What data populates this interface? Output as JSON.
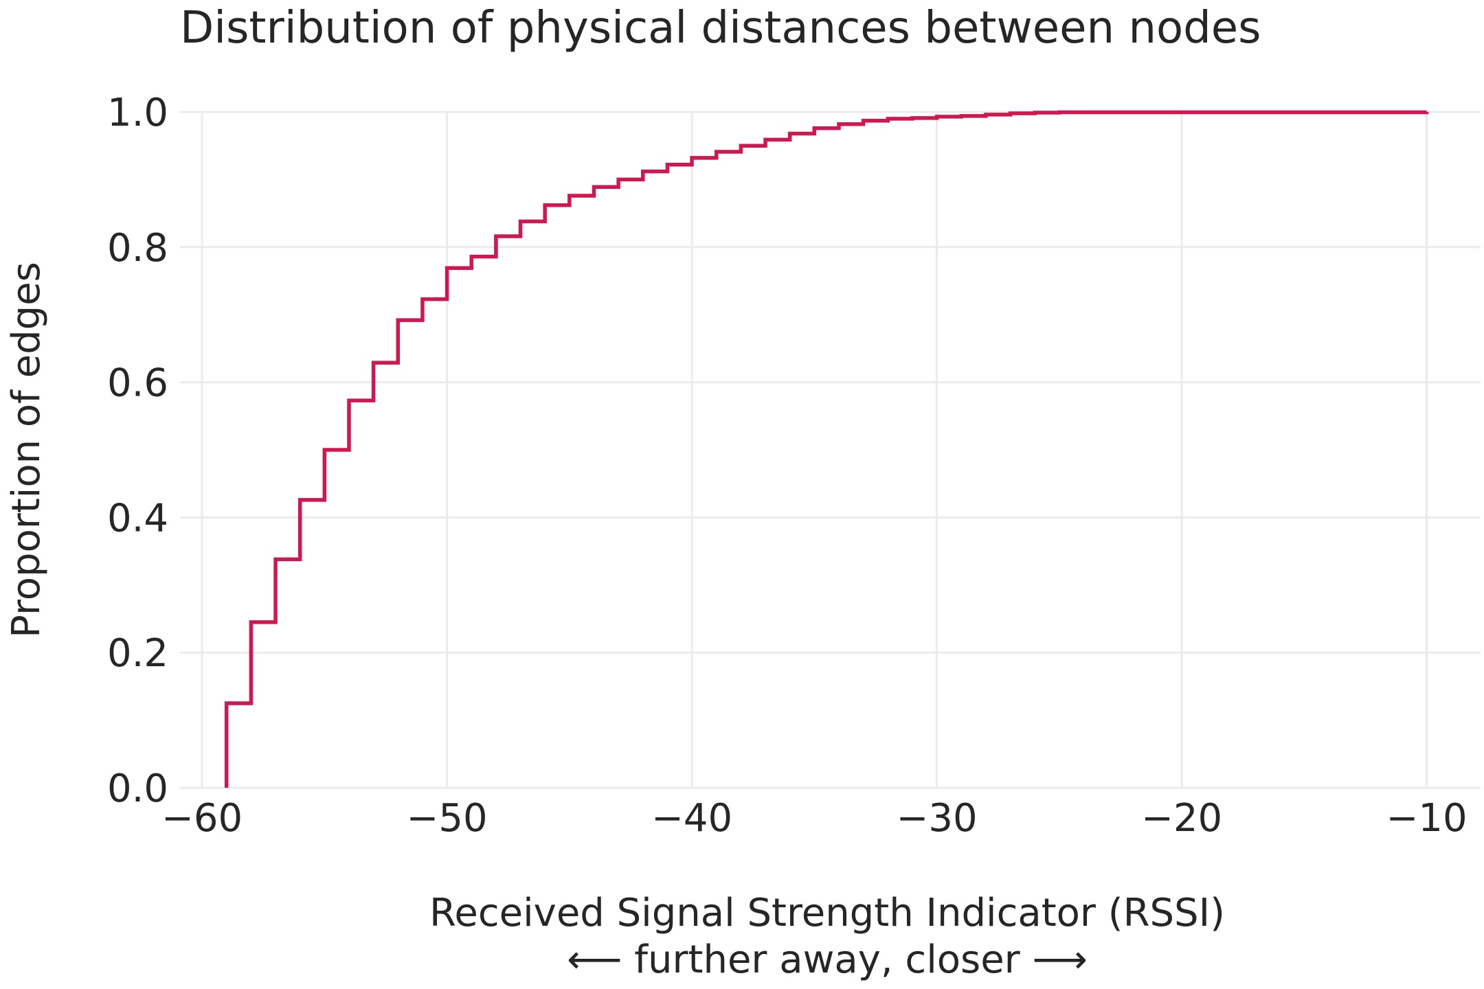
{
  "chart_data": {
    "type": "line",
    "drawstyle": "steps-post",
    "title": "Distribution of physical distances between nodes",
    "xlabel": "Received Signal Strength Indicator (RSSI)",
    "xlabel_sub": "⟵ further away, closer ⟶",
    "ylabel": "Proportion of edges",
    "xlim": [
      -60.9,
      -7.8
    ],
    "ylim": [
      0,
      1.0
    ],
    "x_ticks": [
      -60,
      -50,
      -40,
      -30,
      -20,
      -10
    ],
    "x_tick_labels": [
      "−60",
      "−50",
      "−40",
      "−30",
      "−20",
      "−10"
    ],
    "y_ticks": [
      0.0,
      0.2,
      0.4,
      0.6,
      0.8,
      1.0
    ],
    "y_tick_labels": [
      "0.0",
      "0.2",
      "0.4",
      "0.6",
      "0.8",
      "1.0"
    ],
    "grid": true,
    "line_color": "#d0174f",
    "grid_color": "#ebebeb",
    "series": [
      {
        "x": [
          -59,
          -58,
          -57,
          -56,
          -55,
          -54,
          -53,
          -52,
          -51,
          -50,
          -49,
          -48,
          -47,
          -46,
          -45,
          -44,
          -43,
          -42,
          -41,
          -40,
          -39,
          -38,
          -37,
          -36,
          -35,
          -34,
          -33,
          -32,
          -31,
          -30,
          -29,
          -28,
          -27,
          -26,
          -25,
          -10
        ],
        "y": [
          0.125,
          0.245,
          0.338,
          0.426,
          0.5,
          0.573,
          0.629,
          0.692,
          0.723,
          0.769,
          0.786,
          0.816,
          0.838,
          0.862,
          0.876,
          0.889,
          0.9,
          0.912,
          0.922,
          0.932,
          0.941,
          0.95,
          0.959,
          0.968,
          0.976,
          0.982,
          0.987,
          0.99,
          0.991,
          0.993,
          0.994,
          0.996,
          0.998,
          0.999,
          0.9995,
          1.0
        ]
      }
    ]
  }
}
